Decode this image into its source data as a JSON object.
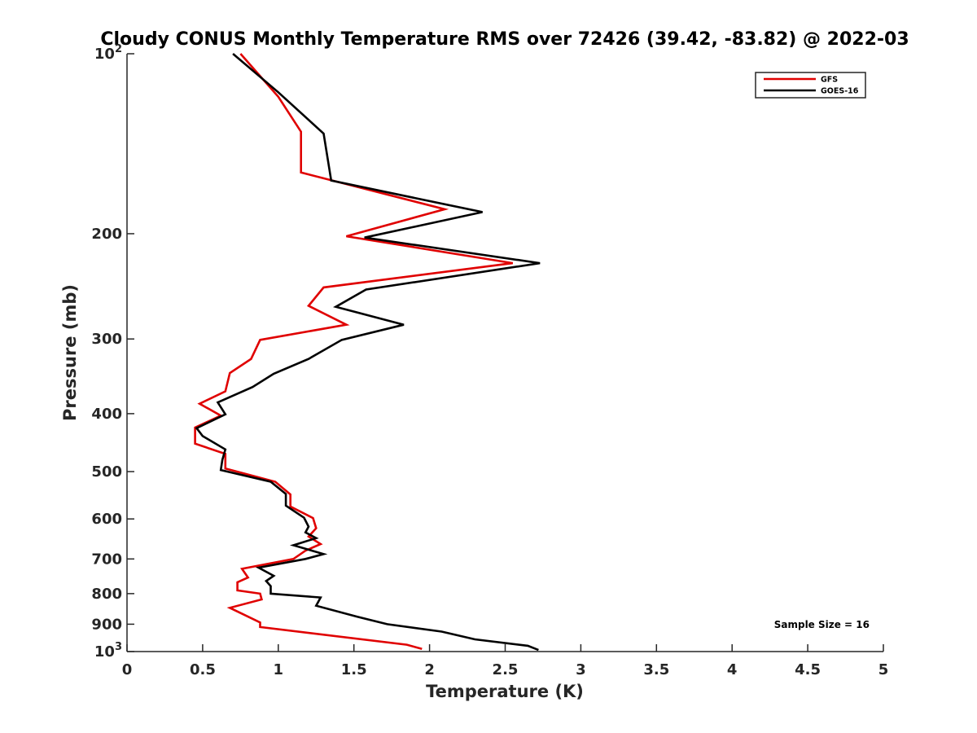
{
  "chart_data": {
    "type": "line",
    "title": "Cloudy CONUS Monthly Temperature RMS over 72426 (39.42, -83.82) @ 2022-03",
    "xlabel": "Temperature (K)",
    "ylabel": "Pressure (mb)",
    "xlim": [
      0,
      5
    ],
    "ylim": [
      1000,
      100
    ],
    "yscale": "log",
    "x_ticks": [
      0,
      0.5,
      1,
      1.5,
      2,
      2.5,
      3,
      3.5,
      4,
      4.5,
      5
    ],
    "x_tick_labels": [
      "0",
      "0.5",
      "1",
      "1.5",
      "2",
      "2.5",
      "3",
      "3.5",
      "4",
      "4.5",
      "5"
    ],
    "y_ticks": [
      100,
      200,
      300,
      400,
      500,
      600,
      700,
      800,
      900,
      1000
    ],
    "y_tick_labels": [
      {
        "base": "10",
        "exp": "2"
      },
      {
        "base": "200",
        "exp": ""
      },
      {
        "base": "300",
        "exp": ""
      },
      {
        "base": "400",
        "exp": ""
      },
      {
        "base": "500",
        "exp": ""
      },
      {
        "base": "600",
        "exp": ""
      },
      {
        "base": "700",
        "exp": ""
      },
      {
        "base": "800",
        "exp": ""
      },
      {
        "base": "900",
        "exp": ""
      },
      {
        "base": "10",
        "exp": "3"
      }
    ],
    "legend_position": "top-right",
    "annotation": "Sample Size = 16",
    "series": [
      {
        "name": "GFS",
        "color": "#e00000",
        "points": [
          [
            0.75,
            100
          ],
          [
            1.0,
            118
          ],
          [
            1.15,
            135
          ],
          [
            1.15,
            158
          ],
          [
            2.1,
            182
          ],
          [
            1.45,
            202
          ],
          [
            2.55,
            224
          ],
          [
            1.3,
            246
          ],
          [
            1.2,
            264
          ],
          [
            1.45,
            284
          ],
          [
            0.88,
            301
          ],
          [
            0.82,
            324
          ],
          [
            0.68,
            342
          ],
          [
            0.65,
            367
          ],
          [
            0.48,
            385
          ],
          [
            0.62,
            403
          ],
          [
            0.45,
            422
          ],
          [
            0.45,
            449
          ],
          [
            0.65,
            467
          ],
          [
            0.65,
            494
          ],
          [
            0.98,
            520
          ],
          [
            1.08,
            546
          ],
          [
            1.08,
            572
          ],
          [
            1.23,
            598
          ],
          [
            1.25,
            622
          ],
          [
            1.2,
            642
          ],
          [
            1.28,
            661
          ],
          [
            1.18,
            678
          ],
          [
            1.1,
            700
          ],
          [
            0.76,
            727
          ],
          [
            0.8,
            752
          ],
          [
            0.73,
            766
          ],
          [
            0.73,
            790
          ],
          [
            0.88,
            800
          ],
          [
            0.89,
            818
          ],
          [
            0.68,
            845
          ],
          [
            0.88,
            894
          ],
          [
            0.88,
            910
          ],
          [
            1.85,
            974
          ],
          [
            1.95,
            990
          ]
        ]
      },
      {
        "name": "GOES-16",
        "color": "#000000",
        "points": [
          [
            0.7,
            100
          ],
          [
            1.0,
            116
          ],
          [
            1.3,
            136
          ],
          [
            1.35,
            163
          ],
          [
            2.35,
            184
          ],
          [
            1.57,
            203
          ],
          [
            2.73,
            224
          ],
          [
            1.58,
            248
          ],
          [
            1.38,
            265
          ],
          [
            1.83,
            284
          ],
          [
            1.42,
            301
          ],
          [
            1.2,
            324
          ],
          [
            0.97,
            343
          ],
          [
            0.83,
            361
          ],
          [
            0.6,
            383
          ],
          [
            0.65,
            401
          ],
          [
            0.46,
            423
          ],
          [
            0.5,
            436
          ],
          [
            0.65,
            459
          ],
          [
            0.63,
            478
          ],
          [
            0.62,
            497
          ],
          [
            0.95,
            520
          ],
          [
            1.05,
            545
          ],
          [
            1.05,
            570
          ],
          [
            1.17,
            597
          ],
          [
            1.2,
            618
          ],
          [
            1.18,
            632
          ],
          [
            1.25,
            646
          ],
          [
            1.1,
            664
          ],
          [
            1.3,
            687
          ],
          [
            1.18,
            700
          ],
          [
            0.87,
            724
          ],
          [
            0.97,
            747
          ],
          [
            0.92,
            762
          ],
          [
            0.95,
            777
          ],
          [
            0.95,
            800
          ],
          [
            1.28,
            812
          ],
          [
            1.25,
            838
          ],
          [
            1.52,
            874
          ],
          [
            1.72,
            900
          ],
          [
            2.08,
            926
          ],
          [
            2.3,
            954
          ],
          [
            2.65,
            978
          ],
          [
            2.72,
            994
          ]
        ]
      }
    ]
  }
}
